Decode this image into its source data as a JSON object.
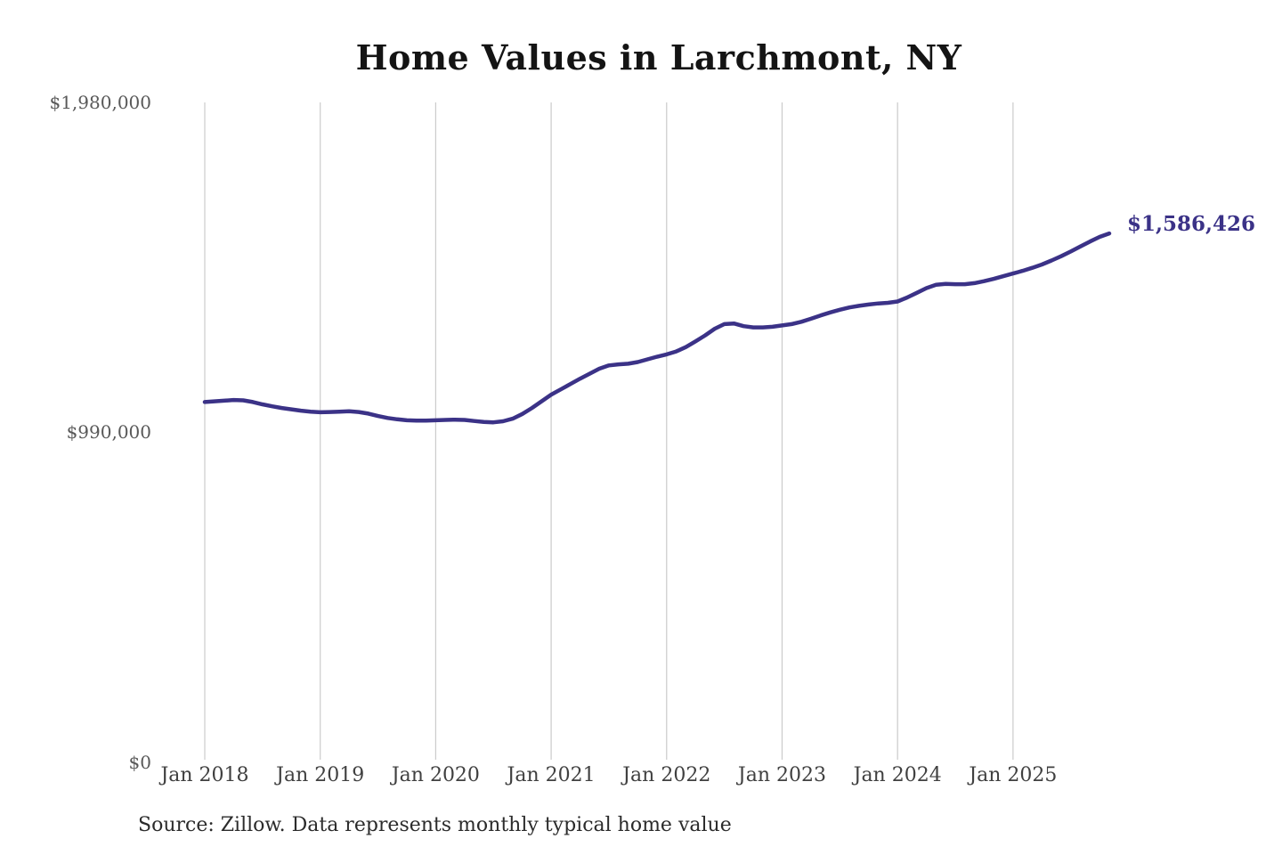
{
  "source_note": "Source: Zillow. Data represents monthly typical home value",
  "colors": {
    "line": "#3b3287",
    "end_label": "#3b3287",
    "grid": "#cbcbcb",
    "title": "#141414",
    "y_tick_label": "#595959",
    "x_tick_label": "#404040",
    "source_text": "#2b2b2b",
    "background": "#ffffff"
  },
  "chart_data": {
    "type": "line",
    "title": "Home Values in Larchmont, NY",
    "xlabel": "",
    "ylabel": "",
    "ylim": [
      0,
      1980000
    ],
    "grid": "vertical-only",
    "legend": "none",
    "y_ticks": [
      {
        "value": 0,
        "label": "$0"
      },
      {
        "value": 990000,
        "label": "$990,000"
      },
      {
        "value": 1980000,
        "label": "$1,980,000"
      }
    ],
    "x_ticks": [
      "Jan 2018",
      "Jan 2019",
      "Jan 2020",
      "Jan 2021",
      "Jan 2022",
      "Jan 2023",
      "Jan 2024",
      "Jan 2025"
    ],
    "series": [
      {
        "name": "Monthly typical home value",
        "start_month": "Jan 2018",
        "end_month": "Nov 2025",
        "frequency": "monthly",
        "values": [
          1080000,
          1082000,
          1084000,
          1086000,
          1085000,
          1080000,
          1073000,
          1067000,
          1062000,
          1058000,
          1054000,
          1051000,
          1049000,
          1050000,
          1051000,
          1052000,
          1050000,
          1045000,
          1038000,
          1032000,
          1028000,
          1025000,
          1024000,
          1024000,
          1025000,
          1026000,
          1027000,
          1026000,
          1023000,
          1020000,
          1019000,
          1022000,
          1030000,
          1044000,
          1062000,
          1082000,
          1102000,
          1118000,
          1134000,
          1150000,
          1165000,
          1180000,
          1190000,
          1193000,
          1195000,
          1200000,
          1208000,
          1216000,
          1223000,
          1232000,
          1245000,
          1262000,
          1280000,
          1300000,
          1314000,
          1316000,
          1308000,
          1304000,
          1304000,
          1306000,
          1310000,
          1314000,
          1321000,
          1330000,
          1340000,
          1349000,
          1357000,
          1364000,
          1369000,
          1373000,
          1376000,
          1378000,
          1382000,
          1394000,
          1408000,
          1422000,
          1432000,
          1435000,
          1434000,
          1434000,
          1437000,
          1443000,
          1450000,
          1458000,
          1466000,
          1474000,
          1483000,
          1493000,
          1505000,
          1518000,
          1532000,
          1547000,
          1562000,
          1576000,
          1586426
        ]
      }
    ],
    "last_point": {
      "month": "Nov 2025",
      "value": 1586426,
      "label": "$1,586,426"
    }
  }
}
